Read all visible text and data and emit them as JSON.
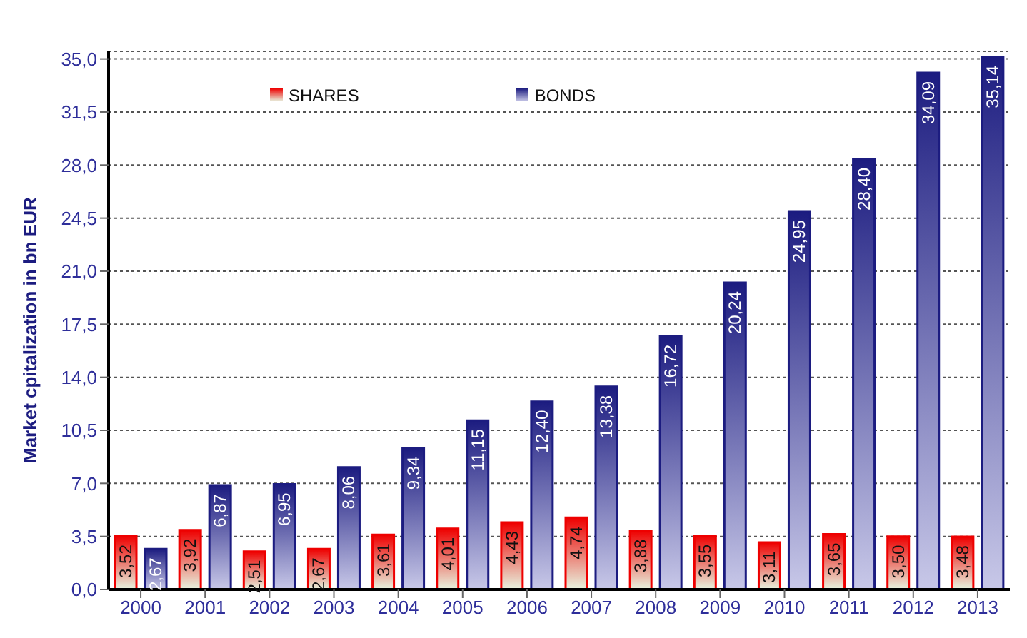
{
  "chart_data": {
    "type": "bar",
    "ylabel": "Market cpitalization in bn EUR",
    "categories": [
      "2000",
      "2001",
      "2002",
      "2003",
      "2004",
      "2005",
      "2006",
      "2007",
      "2008",
      "2009",
      "2010",
      "2011",
      "2012",
      "2013"
    ],
    "series": [
      {
        "name": "SHARES",
        "color": "#ee0000",
        "values": [
          3.52,
          3.92,
          2.51,
          2.67,
          3.61,
          4.01,
          4.43,
          4.74,
          3.88,
          3.55,
          3.11,
          3.65,
          3.5,
          3.48
        ],
        "value_labels": [
          "3,52",
          "3,92",
          "2,51",
          "2,67",
          "3,61",
          "4,01",
          "4,43",
          "4,74",
          "3,88",
          "3,55",
          "3,11",
          "3,65",
          "3,50",
          "3,48"
        ]
      },
      {
        "name": "BONDS",
        "color": "#1c1c80",
        "values": [
          2.67,
          6.87,
          6.95,
          8.06,
          9.34,
          11.15,
          12.4,
          13.38,
          16.72,
          20.24,
          24.95,
          28.4,
          34.09,
          35.14
        ],
        "value_labels": [
          "2,67",
          "6,87",
          "6,95",
          "8,06",
          "9,34",
          "11,15",
          "12,40",
          "13,38",
          "16,72",
          "20,24",
          "24,95",
          "28,40",
          "34,09",
          "35,14"
        ]
      }
    ],
    "ylim": [
      0,
      35.5
    ],
    "yticks": [
      {
        "value": 0,
        "label": "0,0"
      },
      {
        "value": 3.5,
        "label": "3,5"
      },
      {
        "value": 7,
        "label": "7,0"
      },
      {
        "value": 10.5,
        "label": "10,5"
      },
      {
        "value": 14,
        "label": "14,0"
      },
      {
        "value": 17.5,
        "label": "17,5"
      },
      {
        "value": 21,
        "label": "21,0"
      },
      {
        "value": 24.5,
        "label": "24,5"
      },
      {
        "value": 28,
        "label": "28,0"
      },
      {
        "value": 31.5,
        "label": "31,5"
      },
      {
        "value": 35,
        "label": "35,0"
      }
    ],
    "grid": "y",
    "legend": "top"
  }
}
